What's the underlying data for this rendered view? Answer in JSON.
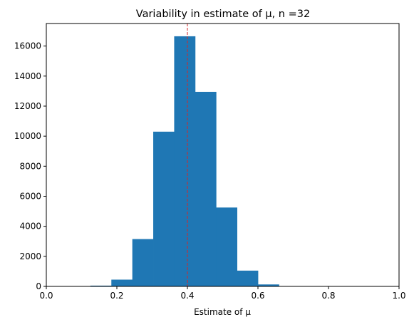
{
  "chart_data": {
    "type": "bar",
    "title": "Variability in estimate of μ, n =32",
    "xlabel": "Estimate of μ",
    "ylabel": "",
    "xlim": [
      0.0,
      1.0
    ],
    "ylim": [
      0,
      17500
    ],
    "xticks": [
      "0.0",
      "0.2",
      "0.4",
      "0.6",
      "0.8",
      "1.0"
    ],
    "yticks": [
      "0",
      "2000",
      "4000",
      "6000",
      "8000",
      "10000",
      "12000",
      "14000",
      "16000"
    ],
    "bin_edges": [
      0.125,
      0.1844,
      0.2438,
      0.3031,
      0.3625,
      0.4219,
      0.4813,
      0.5406,
      0.6,
      0.6594
    ],
    "values": [
      50,
      450,
      3150,
      10300,
      16650,
      12950,
      5250,
      1050,
      130
    ],
    "bar_color": "#1f77b4",
    "reference_line": {
      "x": 0.4,
      "color": "#d62728",
      "style": "dashed"
    },
    "grid": false,
    "legend": "none"
  }
}
